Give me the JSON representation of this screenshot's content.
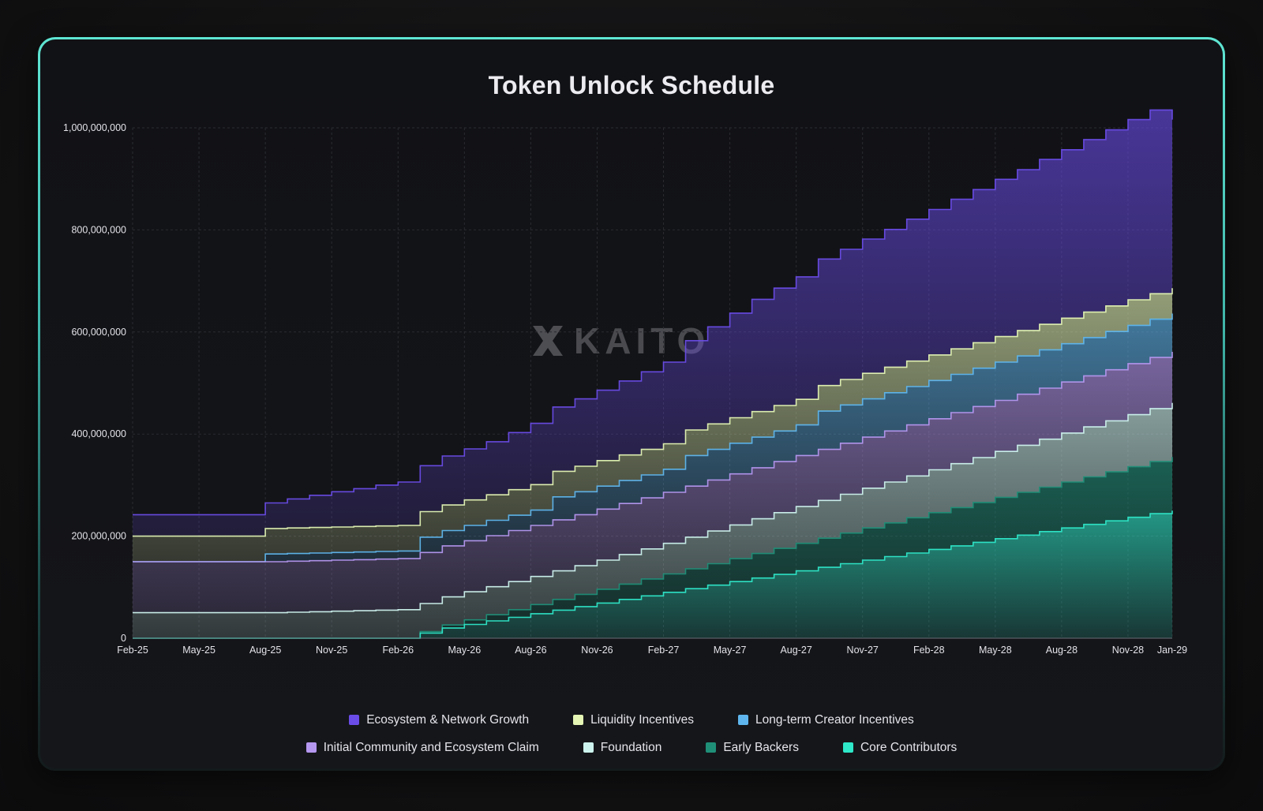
{
  "title": "Token Unlock Schedule",
  "watermark": "KAITO",
  "chart_data": {
    "type": "area",
    "stacked": true,
    "step": true,
    "title": "Token Unlock Schedule",
    "x": [
      "Feb-25",
      "Mar-25",
      "Apr-25",
      "May-25",
      "Jun-25",
      "Jul-25",
      "Aug-25",
      "Sep-25",
      "Oct-25",
      "Nov-25",
      "Dec-25",
      "Jan-26",
      "Feb-26",
      "Mar-26",
      "Apr-26",
      "May-26",
      "Jun-26",
      "Jul-26",
      "Aug-26",
      "Sep-26",
      "Oct-26",
      "Nov-26",
      "Dec-26",
      "Jan-27",
      "Feb-27",
      "Mar-27",
      "Apr-27",
      "May-27",
      "Jun-27",
      "Jul-27",
      "Aug-27",
      "Sep-27",
      "Oct-27",
      "Nov-27",
      "Dec-27",
      "Jan-28",
      "Feb-28",
      "Mar-28",
      "Apr-28",
      "May-28",
      "Jun-28",
      "Jul-28",
      "Aug-28",
      "Sep-28",
      "Oct-28",
      "Nov-28",
      "Dec-28",
      "Jan-29"
    ],
    "x_ticks": [
      "Feb-25",
      "May-25",
      "Aug-25",
      "Nov-25",
      "Feb-26",
      "May-26",
      "Aug-26",
      "Nov-26",
      "Feb-27",
      "May-27",
      "Aug-27",
      "Nov-27",
      "Feb-28",
      "May-28",
      "Aug-28",
      "Nov-28",
      "Jan-29"
    ],
    "y_ticks": [
      "0",
      "200,000,000",
      "400,000,000",
      "600,000,000",
      "800,000,000",
      "1,000,000,000"
    ],
    "ylim": [
      0,
      1000000000
    ],
    "grid": true,
    "legend_position": "bottom",
    "series": [
      {
        "name": "Core Contributors",
        "color": "#2ee8c9",
        "values": [
          0,
          0,
          0,
          0,
          0,
          0,
          0,
          0,
          0,
          0,
          0,
          0,
          0,
          10000000,
          20000000,
          27000000,
          34000000,
          41000000,
          48000000,
          55000000,
          62000000,
          69000000,
          76000000,
          83000000,
          90000000,
          97000000,
          104000000,
          111000000,
          118000000,
          125000000,
          132000000,
          139000000,
          146000000,
          153000000,
          160000000,
          167000000,
          174000000,
          181000000,
          188000000,
          195000000,
          202000000,
          209000000,
          216000000,
          223000000,
          230000000,
          237000000,
          244000000,
          250000000
        ]
      },
      {
        "name": "Early Backers",
        "color": "#1f8f78",
        "values": [
          0,
          0,
          0,
          0,
          0,
          0,
          0,
          0,
          0,
          0,
          0,
          0,
          0,
          3000000,
          6000000,
          9000000,
          12000000,
          15000000,
          18000000,
          21000000,
          24000000,
          27000000,
          30000000,
          33000000,
          36000000,
          39000000,
          42000000,
          45000000,
          48000000,
          51000000,
          54000000,
          57000000,
          60000000,
          63000000,
          66000000,
          69000000,
          72000000,
          75000000,
          78000000,
          81000000,
          84000000,
          87000000,
          90000000,
          93000000,
          96000000,
          99000000,
          102000000,
          105000000
        ]
      },
      {
        "name": "Foundation",
        "color": "#cdf3ee",
        "values": [
          50000000,
          50000000,
          50000000,
          50000000,
          50000000,
          50000000,
          50000000,
          51000000,
          52000000,
          53000000,
          54000000,
          55000000,
          56000000,
          55000000,
          55000000,
          55000000,
          55000000,
          55000000,
          55000000,
          56000000,
          56000000,
          57000000,
          58000000,
          59000000,
          60000000,
          62000000,
          64000000,
          66000000,
          68000000,
          70000000,
          72000000,
          74000000,
          76000000,
          78000000,
          80000000,
          82000000,
          84000000,
          86000000,
          88000000,
          90000000,
          92000000,
          94000000,
          96000000,
          98000000,
          100000000,
          102000000,
          104000000,
          106000000
        ]
      },
      {
        "name": "Initial Community and Ecosystem Claim",
        "color": "#b597f0",
        "values": [
          100000000,
          100000000,
          100000000,
          100000000,
          100000000,
          100000000,
          100000000,
          100000000,
          100000000,
          100000000,
          100000000,
          100000000,
          100000000,
          100000000,
          100000000,
          100000000,
          100000000,
          100000000,
          100000000,
          100000000,
          100000000,
          100000000,
          100000000,
          100000000,
          100000000,
          100000000,
          100000000,
          100000000,
          100000000,
          100000000,
          100000000,
          100000000,
          100000000,
          100000000,
          100000000,
          100000000,
          100000000,
          100000000,
          100000000,
          100000000,
          100000000,
          100000000,
          100000000,
          100000000,
          100000000,
          100000000,
          100000000,
          100000000
        ]
      },
      {
        "name": "Long-term Creator Incentives",
        "color": "#5fb6ee",
        "values": [
          0,
          0,
          0,
          0,
          0,
          0,
          15000000,
          15000000,
          15000000,
          15000000,
          15000000,
          15000000,
          15000000,
          30000000,
          30000000,
          30000000,
          30000000,
          30000000,
          30000000,
          45000000,
          45000000,
          45000000,
          45000000,
          45000000,
          45000000,
          60000000,
          60000000,
          60000000,
          60000000,
          60000000,
          60000000,
          75000000,
          75000000,
          75000000,
          75000000,
          75000000,
          75000000,
          75000000,
          75000000,
          75000000,
          75000000,
          75000000,
          75000000,
          75000000,
          75000000,
          75000000,
          75000000,
          75000000
        ]
      },
      {
        "name": "Liquidity Incentives",
        "color": "#e4f5b4",
        "values": [
          50000000,
          50000000,
          50000000,
          50000000,
          50000000,
          50000000,
          50000000,
          50000000,
          50000000,
          50000000,
          50000000,
          50000000,
          50000000,
          50000000,
          50000000,
          50000000,
          50000000,
          50000000,
          50000000,
          50000000,
          50000000,
          50000000,
          50000000,
          50000000,
          50000000,
          50000000,
          50000000,
          50000000,
          50000000,
          50000000,
          50000000,
          50000000,
          50000000,
          50000000,
          50000000,
          50000000,
          50000000,
          50000000,
          50000000,
          50000000,
          50000000,
          50000000,
          50000000,
          50000000,
          50000000,
          50000000,
          50000000,
          50000000
        ]
      },
      {
        "name": "Ecosystem & Network Growth",
        "color": "#6a4ce8",
        "values": [
          42000000,
          42000000,
          42000000,
          42000000,
          42000000,
          42000000,
          50000000,
          57000000,
          63000000,
          69000000,
          74000000,
          80000000,
          85000000,
          90000000,
          96000000,
          100000000,
          104000000,
          112000000,
          120000000,
          126000000,
          132000000,
          138000000,
          145000000,
          152000000,
          160000000,
          175000000,
          190000000,
          205000000,
          220000000,
          230000000,
          240000000,
          248000000,
          255000000,
          263000000,
          270000000,
          278000000,
          285000000,
          293000000,
          300000000,
          308000000,
          315000000,
          323000000,
          330000000,
          338000000,
          345000000,
          353000000,
          360000000,
          330000000
        ]
      }
    ]
  },
  "legend": {
    "row1": [
      {
        "label": "Ecosystem & Network Growth",
        "color": "#6a4ce8"
      },
      {
        "label": "Liquidity Incentives",
        "color": "#e4f5b4"
      },
      {
        "label": "Long-term Creator Incentives",
        "color": "#5fb6ee"
      }
    ],
    "row2": [
      {
        "label": "Initial Community and Ecosystem Claim",
        "color": "#b597f0"
      },
      {
        "label": "Foundation",
        "color": "#cdf3ee"
      },
      {
        "label": "Early Backers",
        "color": "#1f8f78"
      },
      {
        "label": "Core Contributors",
        "color": "#2ee8c9"
      }
    ]
  }
}
